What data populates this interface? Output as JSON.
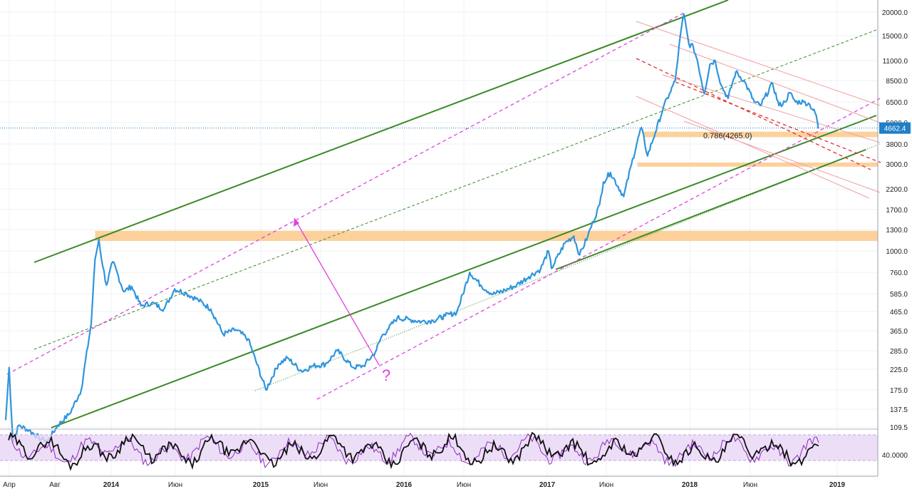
{
  "chart_data": [
    {
      "type": "line",
      "panel": "price",
      "scale": "log",
      "ylim": [
        109.5,
        20000
      ],
      "xlim": [
        "2013-04-01",
        "2019-01-31"
      ],
      "grid": true,
      "y_ticks": [
        "20000.0",
        "15000.0",
        "11000.0",
        "8500.0",
        "6500.0",
        "5000.0",
        "3800.0",
        "3000.0",
        "2200.0",
        "1700.0",
        "1300.0",
        "1000.0",
        "760.0",
        "585.0",
        "465.0",
        "365.0",
        "285.0",
        "225.0",
        "175.0",
        "137.5",
        "109.5"
      ],
      "x_ticks": [
        "Апр",
        "Авг",
        "2014",
        "Июн",
        "2015",
        "Июн",
        "2016",
        "Июн",
        "2017",
        "Июн",
        "2018",
        "Июн",
        "2019"
      ],
      "last_price_label": "4662.4",
      "colors": {
        "price": "#2f95dc",
        "channel": "#3a8a24",
        "pink": "#e040e0",
        "zone": "#fbc98a",
        "red": "#e03030",
        "last": "#1f7fc8"
      },
      "series": [
        {
          "x": [
            "2013-04-01",
            "2013-04-10",
            "2013-04-20",
            "2013-05-05",
            "2013-06-01",
            "2013-07-01",
            "2013-07-20",
            "2013-08-15",
            "2013-09-15",
            "2013-10-15",
            "2013-11-10",
            "2013-11-20",
            "2013-11-30",
            "2013-12-10",
            "2013-12-20",
            "2014-01-05",
            "2014-02-01",
            "2014-02-20",
            "2014-03-15",
            "2014-04-10",
            "2014-05-10",
            "2014-06-05",
            "2014-07-01",
            "2014-08-01",
            "2014-09-01",
            "2014-10-01",
            "2014-11-01",
            "2014-12-01",
            "2015-01-14",
            "2015-02-15",
            "2015-03-10",
            "2015-04-15",
            "2015-05-15",
            "2015-06-15",
            "2015-07-15",
            "2015-08-25",
            "2015-09-20",
            "2015-10-20",
            "2015-11-05",
            "2015-11-20",
            "2015-12-15",
            "2016-01-15",
            "2016-02-15",
            "2016-03-15",
            "2016-04-15",
            "2016-05-15",
            "2016-06-17",
            "2016-07-15",
            "2016-08-15",
            "2016-09-15",
            "2016-10-15",
            "2016-11-15",
            "2016-12-15",
            "2017-01-04",
            "2017-01-12",
            "2017-02-15",
            "2017-03-10",
            "2017-03-25",
            "2017-04-15",
            "2017-05-15",
            "2017-05-25",
            "2017-06-12",
            "2017-07-16",
            "2017-08-05",
            "2017-08-30",
            "2017-09-15",
            "2017-10-05",
            "2017-10-25",
            "2017-11-10",
            "2017-11-25",
            "2017-12-08",
            "2017-12-17",
            "2017-12-30",
            "2018-01-10",
            "2018-01-20",
            "2018-02-06",
            "2018-02-20",
            "2018-03-05",
            "2018-03-20",
            "2018-04-06",
            "2018-04-25",
            "2018-05-15",
            "2018-06-10",
            "2018-06-25",
            "2018-07-25",
            "2018-08-10",
            "2018-08-25",
            "2018-09-05",
            "2018-09-20",
            "2018-10-10",
            "2018-10-25",
            "2018-11-10",
            "2018-11-15"
          ],
          "y": [
            120,
            230,
            90,
            112,
            105,
            94,
            92,
            112,
            130,
            175,
            400,
            900,
            1150,
            820,
            650,
            870,
            600,
            640,
            500,
            520,
            480,
            620,
            590,
            540,
            480,
            350,
            370,
            330,
            175,
            240,
            260,
            220,
            235,
            240,
            285,
            230,
            235,
            280,
            340,
            370,
            430,
            420,
            410,
            415,
            440,
            460,
            760,
            650,
            580,
            610,
            650,
            720,
            790,
            1000,
            800,
            1100,
            1200,
            950,
            1200,
            1800,
            2400,
            2700,
            2000,
            3000,
            4700,
            3300,
            4400,
            6000,
            7200,
            8500,
            15000,
            19500,
            13500,
            13000,
            11000,
            7200,
            10500,
            11000,
            8000,
            6800,
            9500,
            8500,
            6500,
            6200,
            8200,
            6200,
            6500,
            7300,
            6500,
            6500,
            6300,
            5500,
            4662.4
          ]
        }
      ],
      "annotations": [
        "0.786(4265.0)",
        "?"
      ],
      "horizontal_zones": [
        {
          "y_from": 1130,
          "y_to": 1280,
          "x_from": "2013-11-20",
          "x_to": "2019-01-31"
        },
        {
          "y_from": 2900,
          "y_to": 3050,
          "x_from": "2017-08-20",
          "x_to": "2019-01-31"
        },
        {
          "y_from": 4150,
          "y_to": 4450,
          "x_from": "2017-09-05",
          "x_to": "2019-01-31"
        }
      ]
    },
    {
      "type": "line",
      "panel": "oscillator",
      "y_ticks": [
        "40.0000"
      ],
      "band": [
        20,
        80
      ],
      "series": [
        {
          "color": "#8a2bbd"
        },
        {
          "color": "#111111"
        }
      ]
    }
  ]
}
